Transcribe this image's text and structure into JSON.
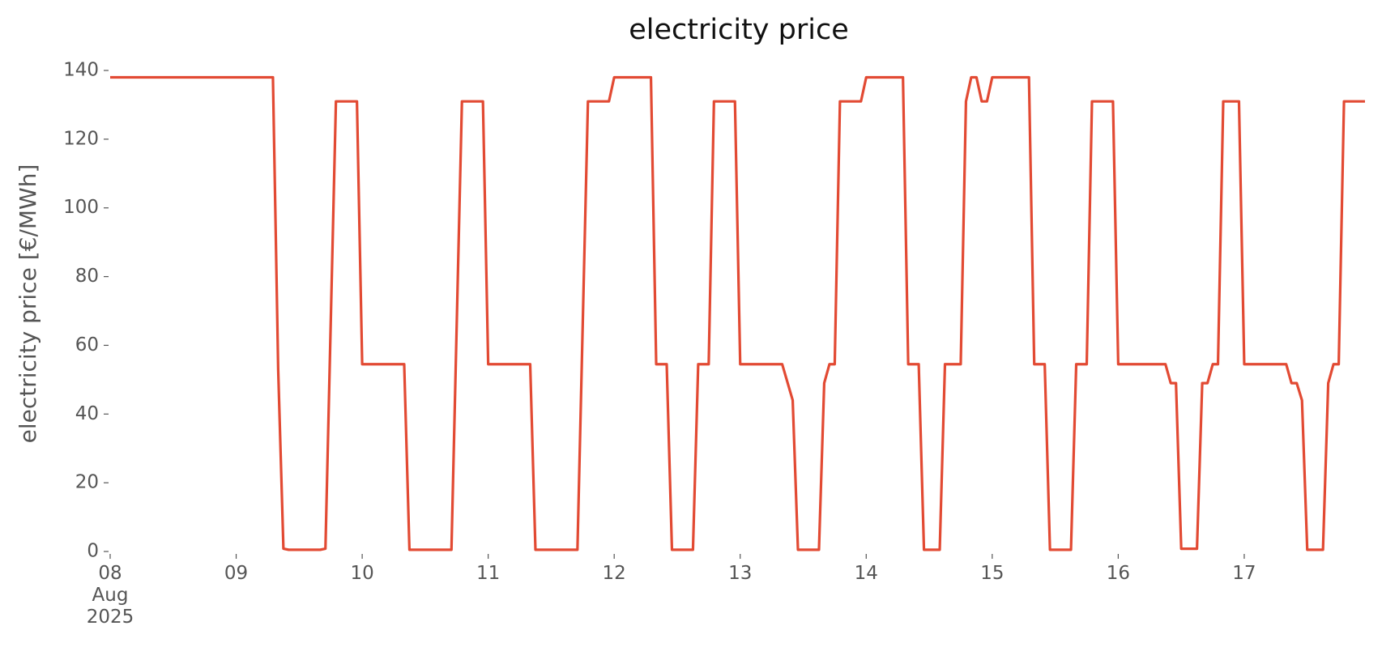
{
  "chart_data": {
    "type": "line",
    "title": "electricity price",
    "ylabel": "electricity price [€/MWh]",
    "color": "#e24a33",
    "x": [
      "2025-08-08T00:00",
      "2025-08-09T07:00",
      "2025-08-09T08:00",
      "2025-08-09T09:00",
      "2025-08-09T10:00",
      "2025-08-09T16:00",
      "2025-08-09T17:00",
      "2025-08-09T19:00",
      "2025-08-09T23:00",
      "2025-08-10T00:00",
      "2025-08-10T08:00",
      "2025-08-10T09:00",
      "2025-08-10T17:00",
      "2025-08-10T19:00",
      "2025-08-10T23:00",
      "2025-08-11T00:00",
      "2025-08-11T08:00",
      "2025-08-11T09:00",
      "2025-08-11T17:00",
      "2025-08-11T19:00",
      "2025-08-11T23:00",
      "2025-08-12T00:00",
      "2025-08-12T07:00",
      "2025-08-12T08:00",
      "2025-08-12T10:00",
      "2025-08-12T11:00",
      "2025-08-12T15:00",
      "2025-08-12T16:00",
      "2025-08-12T18:00",
      "2025-08-12T19:00",
      "2025-08-12T23:00",
      "2025-08-13T00:00",
      "2025-08-13T08:00",
      "2025-08-13T10:00",
      "2025-08-13T11:00",
      "2025-08-13T15:00",
      "2025-08-13T16:00",
      "2025-08-13T17:00",
      "2025-08-13T18:00",
      "2025-08-13T19:00",
      "2025-08-13T23:00",
      "2025-08-14T00:00",
      "2025-08-14T07:00",
      "2025-08-14T08:00",
      "2025-08-14T10:00",
      "2025-08-14T11:00",
      "2025-08-14T14:00",
      "2025-08-14T15:00",
      "2025-08-14T18:00",
      "2025-08-14T19:00",
      "2025-08-14T20:00",
      "2025-08-14T21:00",
      "2025-08-14T22:00",
      "2025-08-14T23:00",
      "2025-08-15T00:00",
      "2025-08-15T07:00",
      "2025-08-15T08:00",
      "2025-08-15T10:00",
      "2025-08-15T11:00",
      "2025-08-15T15:00",
      "2025-08-15T16:00",
      "2025-08-15T18:00",
      "2025-08-15T19:00",
      "2025-08-15T23:00",
      "2025-08-16T00:00",
      "2025-08-16T09:00",
      "2025-08-16T10:00",
      "2025-08-16T11:00",
      "2025-08-16T12:00",
      "2025-08-16T15:00",
      "2025-08-16T16:00",
      "2025-08-16T17:00",
      "2025-08-16T18:00",
      "2025-08-16T19:00",
      "2025-08-16T20:00",
      "2025-08-16T23:00",
      "2025-08-17T00:00",
      "2025-08-17T08:00",
      "2025-08-17T09:00",
      "2025-08-17T10:00",
      "2025-08-17T11:00",
      "2025-08-17T12:00",
      "2025-08-17T15:00",
      "2025-08-17T16:00",
      "2025-08-17T17:00",
      "2025-08-17T18:00",
      "2025-08-17T19:00",
      "2025-08-17T23:00"
    ],
    "values": [
      138,
      138,
      53,
      0.8,
      0.5,
      0.5,
      0.8,
      131,
      131,
      54.5,
      54.5,
      0.5,
      0.5,
      131,
      131,
      54.5,
      54.5,
      0.5,
      0.5,
      131,
      131,
      138,
      138,
      54.5,
      54.5,
      0.5,
      0.5,
      54.5,
      54.5,
      131,
      131,
      54.5,
      54.5,
      44,
      0.5,
      0.5,
      49,
      54.5,
      54.5,
      131,
      131,
      138,
      138,
      54.5,
      54.5,
      0.5,
      0.5,
      54.5,
      54.5,
      131,
      138,
      138,
      131,
      131,
      138,
      138,
      54.5,
      54.5,
      0.5,
      0.5,
      54.5,
      54.5,
      131,
      131,
      54.5,
      54.5,
      49,
      49,
      0.8,
      0.8,
      49,
      49,
      54.5,
      54.5,
      131,
      131,
      54.5,
      54.5,
      49,
      49,
      44,
      0.5,
      0.5,
      49,
      54.5,
      54.5,
      131,
      131
    ],
    "xlim": [
      "2025-08-08T00:00",
      "2025-08-17T23:00"
    ],
    "xticks": [
      {
        "value": "2025-08-08T00:00",
        "label": "08\nAug\n2025"
      },
      {
        "value": "2025-08-09T00:00",
        "label": "09"
      },
      {
        "value": "2025-08-10T00:00",
        "label": "10"
      },
      {
        "value": "2025-08-11T00:00",
        "label": "11"
      },
      {
        "value": "2025-08-12T00:00",
        "label": "12"
      },
      {
        "value": "2025-08-13T00:00",
        "label": "13"
      },
      {
        "value": "2025-08-14T00:00",
        "label": "14"
      },
      {
        "value": "2025-08-15T00:00",
        "label": "15"
      },
      {
        "value": "2025-08-16T00:00",
        "label": "16"
      },
      {
        "value": "2025-08-17T00:00",
        "label": "17"
      }
    ],
    "ylim": [
      0,
      140
    ],
    "yticks": [
      0,
      20,
      40,
      60,
      80,
      100,
      120,
      140
    ],
    "grid": false
  }
}
